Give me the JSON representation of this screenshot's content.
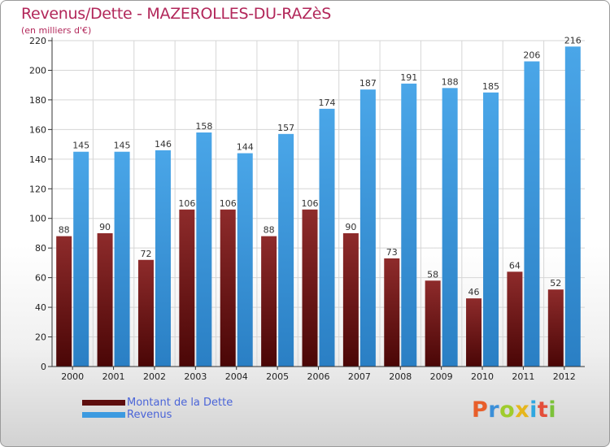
{
  "chart_data": {
    "type": "bar",
    "title": "Revenus/Dette - MAZEROLLES-DU-RAZèS",
    "subtitle": "(en milliers d'€)",
    "categories": [
      "2000",
      "2001",
      "2002",
      "2003",
      "2004",
      "2005",
      "2006",
      "2007",
      "2008",
      "2009",
      "2010",
      "2011",
      "2012"
    ],
    "series": [
      {
        "name": "Montant de la Dette",
        "color": "#7a1a1a",
        "values": [
          88,
          90,
          72,
          106,
          106,
          88,
          106,
          90,
          73,
          58,
          46,
          64,
          52
        ]
      },
      {
        "name": "Revenus",
        "color": "#3c9ae0",
        "values": [
          145,
          145,
          146,
          158,
          144,
          157,
          174,
          187,
          191,
          188,
          185,
          206,
          216
        ]
      }
    ],
    "ylim": [
      0,
      220
    ],
    "yticks": [
      0,
      20,
      40,
      60,
      80,
      100,
      120,
      140,
      160,
      180,
      200,
      220
    ],
    "grid": true,
    "legend_position": "bottom-left"
  },
  "logo": {
    "text": "Proxiti",
    "letter_colors": [
      "#e85e2a",
      "#3b8fd8",
      "#9fcc2c",
      "#e6b61c",
      "#2fa7e0",
      "#e44e3a",
      "#7cc23a"
    ]
  }
}
